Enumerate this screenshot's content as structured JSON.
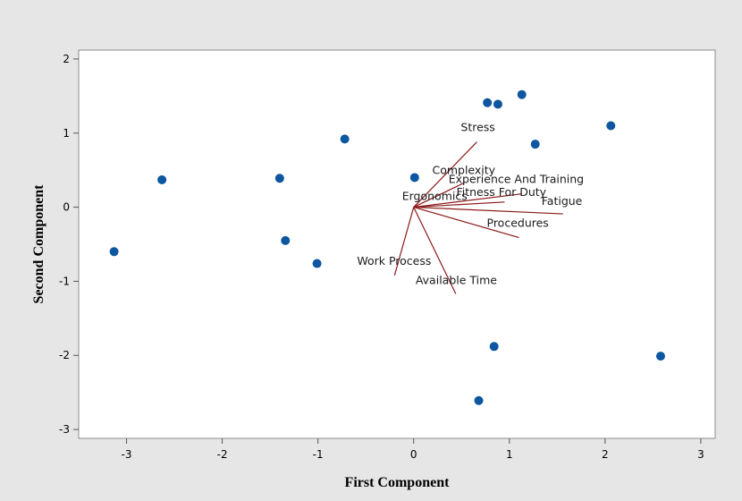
{
  "chart_data": {
    "type": "scatter",
    "title": "",
    "xlabel": "First Component",
    "ylabel": "Second Component",
    "xlim": [
      -3.5,
      3.15
    ],
    "ylim": [
      -3.12,
      2.12
    ],
    "x_ticks": [
      -3,
      -2,
      -1,
      0,
      1,
      2,
      3
    ],
    "y_ticks": [
      -3,
      -2,
      -1,
      0,
      1,
      2
    ],
    "grid": false,
    "point_color": "#0d56a0",
    "vector_color": "#8b1a1a",
    "points": [
      {
        "x": -3.13,
        "y": -0.6
      },
      {
        "x": -2.63,
        "y": 0.37
      },
      {
        "x": -1.4,
        "y": 0.39
      },
      {
        "x": -1.34,
        "y": -0.45
      },
      {
        "x": -1.01,
        "y": -0.76
      },
      {
        "x": -0.72,
        "y": 0.92
      },
      {
        "x": 0.01,
        "y": 0.4
      },
      {
        "x": 0.77,
        "y": 1.41
      },
      {
        "x": 0.88,
        "y": 1.39
      },
      {
        "x": 1.13,
        "y": 1.52
      },
      {
        "x": 1.27,
        "y": 0.85
      },
      {
        "x": 2.06,
        "y": 1.1
      },
      {
        "x": 2.58,
        "y": -2.01
      },
      {
        "x": 0.84,
        "y": -1.88
      },
      {
        "x": 0.68,
        "y": -2.61
      }
    ],
    "vectors": [
      {
        "label": "Stress",
        "x": 0.66,
        "y": 0.88
      },
      {
        "label": "Complexity",
        "x": 0.53,
        "y": 0.33
      },
      {
        "label": "Experience And Training",
        "x": 1.13,
        "y": 0.18
      },
      {
        "label": "Fitness For Duty",
        "x": 0.95,
        "y": 0.07
      },
      {
        "label": "Fatigue",
        "x": 1.56,
        "y": -0.09
      },
      {
        "label": "Ergonomics",
        "x": 0.0,
        "y": 0.0
      },
      {
        "label": "Procedures",
        "x": 1.1,
        "y": -0.41
      },
      {
        "label": "Work Process",
        "x": -0.2,
        "y": -0.92
      },
      {
        "label": "Available Time",
        "x": 0.44,
        "y": -1.17
      }
    ]
  }
}
